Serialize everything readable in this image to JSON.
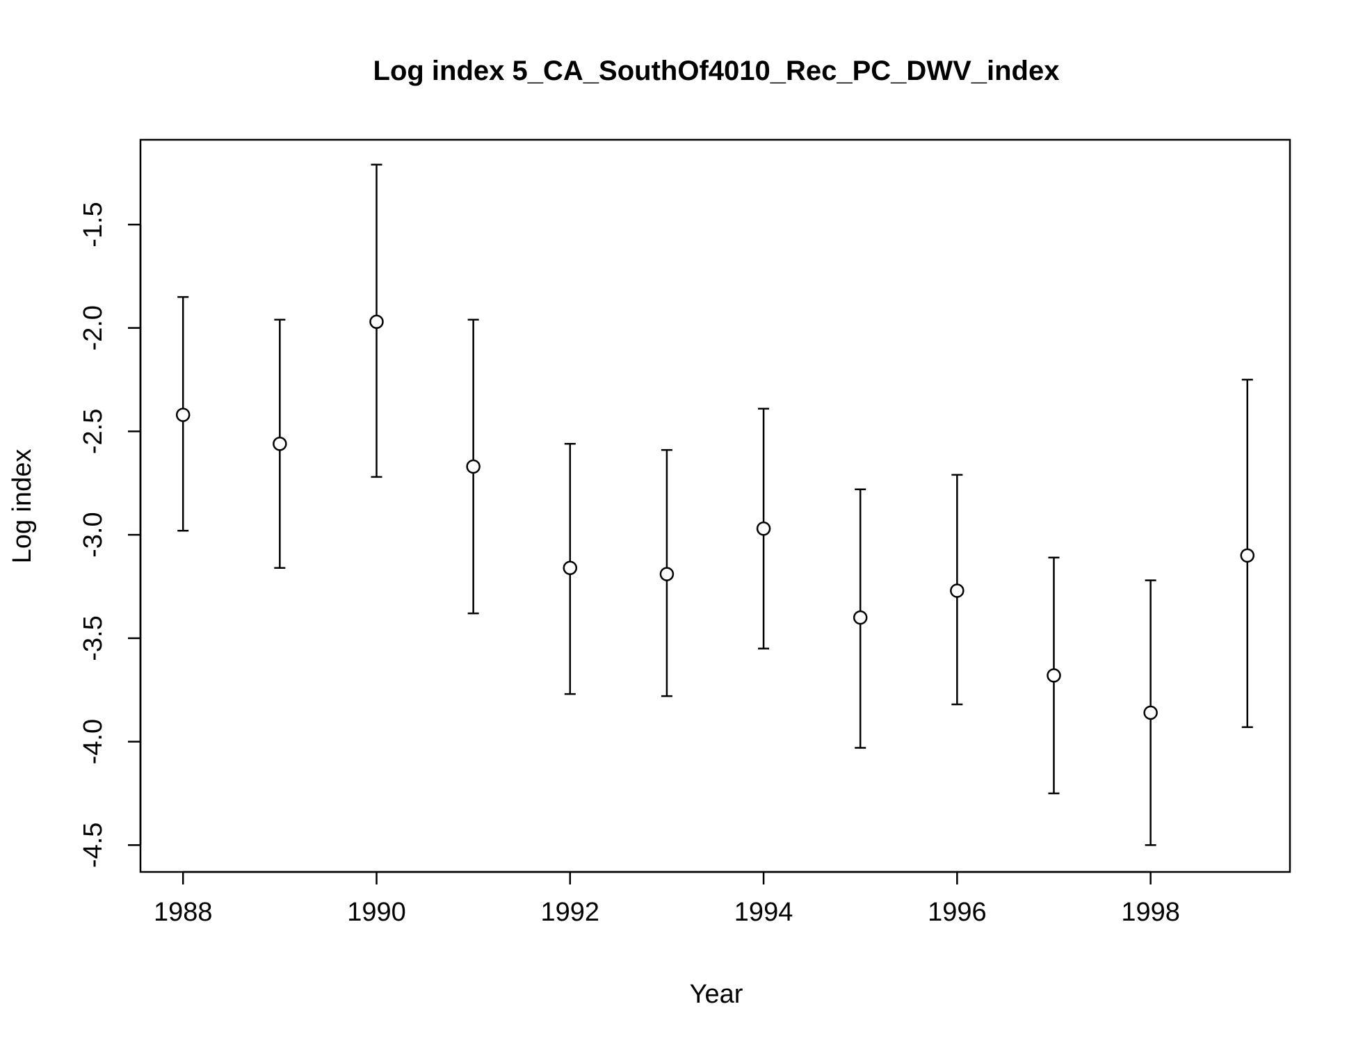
{
  "chart_data": {
    "type": "scatter",
    "title": "Log index 5_CA_SouthOf4010_Rec_PC_DWV_index",
    "xlabel": "Year",
    "ylabel": "Log index",
    "xlim": [
      1987.56,
      1999.44
    ],
    "ylim": [
      -4.63,
      -1.09
    ],
    "x_ticks": [
      1988,
      1990,
      1992,
      1994,
      1996,
      1998
    ],
    "y_ticks": [
      -1.5,
      -2.0,
      -2.5,
      -3.0,
      -3.5,
      -4.0,
      -4.5
    ],
    "x_tick_labels": [
      "1988",
      "1990",
      "1992",
      "1994",
      "1996",
      "1998"
    ],
    "y_tick_labels": [
      "-1.5",
      "-2.0",
      "-2.5",
      "-3.0",
      "-3.5",
      "-4.0",
      "-4.5"
    ],
    "grid": false,
    "marker": "open-circle",
    "error_bars": true,
    "points": [
      {
        "x": 1988,
        "y": -2.42,
        "lower": -2.98,
        "upper": -1.85
      },
      {
        "x": 1989,
        "y": -2.56,
        "lower": -3.16,
        "upper": -1.96
      },
      {
        "x": 1990,
        "y": -1.97,
        "lower": -2.72,
        "upper": -1.21
      },
      {
        "x": 1991,
        "y": -2.67,
        "lower": -3.38,
        "upper": -1.96
      },
      {
        "x": 1992,
        "y": -3.16,
        "lower": -3.77,
        "upper": -2.56
      },
      {
        "x": 1993,
        "y": -3.19,
        "lower": -3.78,
        "upper": -2.59
      },
      {
        "x": 1994,
        "y": -2.97,
        "lower": -3.55,
        "upper": -2.39
      },
      {
        "x": 1995,
        "y": -3.4,
        "lower": -4.03,
        "upper": -2.78
      },
      {
        "x": 1996,
        "y": -3.27,
        "lower": -3.82,
        "upper": -2.71
      },
      {
        "x": 1997,
        "y": -3.68,
        "lower": -4.25,
        "upper": -3.11
      },
      {
        "x": 1998,
        "y": -3.86,
        "lower": -4.5,
        "upper": -3.22
      },
      {
        "x": 1999,
        "y": -3.1,
        "lower": -3.93,
        "upper": -2.25
      }
    ]
  }
}
